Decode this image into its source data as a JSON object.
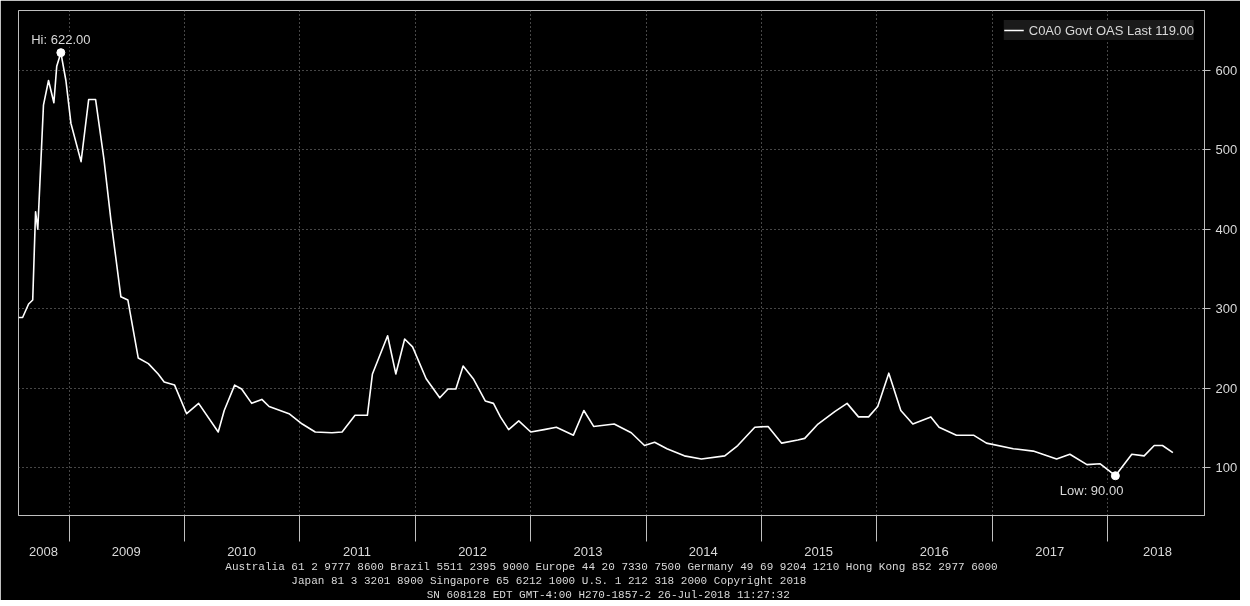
{
  "chart_data": {
    "type": "line",
    "x": [
      "2008-07-25",
      "2008-08-07",
      "2008-08-26",
      "2008-09-08",
      "2008-09-17",
      "2008-09-24",
      "2008-10-12",
      "2008-10-28",
      "2008-11-14",
      "2008-11-23",
      "2008-12-06",
      "2008-12-22",
      "2009-01-07",
      "2009-02-08",
      "2009-03-04",
      "2009-03-26",
      "2009-04-21",
      "2009-05-13",
      "2009-06-14",
      "2009-07-06",
      "2009-08-08",
      "2009-09-09",
      "2009-10-10",
      "2009-10-29",
      "2009-12-01",
      "2010-01-08",
      "2010-02-15",
      "2010-04-18",
      "2010-05-07",
      "2010-06-09",
      "2010-07-01",
      "2010-08-02",
      "2010-09-03",
      "2010-09-26",
      "2010-11-28",
      "2011-01-09",
      "2011-02-19",
      "2011-04-13",
      "2011-05-15",
      "2011-06-25",
      "2011-08-03",
      "2011-08-19",
      "2011-10-06",
      "2011-11-01",
      "2011-11-29",
      "2011-12-24",
      "2012-02-05",
      "2012-03-19",
      "2012-04-14",
      "2012-05-09",
      "2012-06-01",
      "2012-07-03",
      "2012-08-10",
      "2012-09-05",
      "2012-09-27",
      "2012-10-23",
      "2012-11-24",
      "2013-01-01",
      "2013-02-12",
      "2013-03-23",
      "2013-05-16",
      "2013-06-18",
      "2013-07-19",
      "2013-09-22",
      "2013-11-15",
      "2013-12-27",
      "2014-01-28",
      "2014-03-08",
      "2014-05-02",
      "2014-06-25",
      "2014-09-07",
      "2014-10-18",
      "2014-12-11",
      "2015-01-22",
      "2015-03-06",
      "2015-04-26",
      "2015-05-18",
      "2015-06-29",
      "2015-08-22",
      "2015-09-29",
      "2015-11-04",
      "2015-12-06",
      "2016-01-04",
      "2016-02-08",
      "2016-03-17",
      "2016-04-24",
      "2016-06-20",
      "2016-07-16",
      "2016-09-09",
      "2016-11-02",
      "2016-12-13",
      "2017-03-08",
      "2017-05-10",
      "2017-07-23",
      "2017-09-03",
      "2017-10-27",
      "2017-12-08",
      "2018-01-25",
      "2018-03-18",
      "2018-04-26",
      "2018-05-28",
      "2018-06-23",
      "2018-07-26"
    ],
    "series": [
      {
        "name": "C0A0 Govt OAS Last 119.00",
        "color": "#ffffff",
        "values": [
          289,
          289,
          306,
          311,
          422,
          400,
          556,
          587,
          559,
          605,
          622,
          587,
          533,
          485,
          563,
          563,
          489,
          413,
          315,
          311,
          238,
          231,
          218,
          208,
          204,
          168,
          181,
          145,
          172,
          204,
          199,
          181,
          186,
          177,
          168,
          155,
          145,
          144,
          145,
          166,
          166,
          218,
          266,
          218,
          262,
          252,
          212,
          188,
          199,
          199,
          228,
          212,
          184,
          181,
          164,
          148,
          159,
          145,
          148,
          151,
          141,
          172,
          152,
          155,
          144,
          128,
          132,
          124,
          115,
          111,
          115,
          128,
          151,
          152,
          131,
          135,
          137,
          155,
          171,
          181,
          164,
          164,
          177,
          219,
          172,
          155,
          164,
          151,
          141,
          141,
          131,
          124,
          121,
          111,
          117,
          104,
          105,
          90,
          117,
          115,
          128,
          128,
          119
        ]
      }
    ],
    "xlim": [
      "2008-07-25",
      "2018-11-03"
    ],
    "xticks": [
      {
        "value": "2008-10-12",
        "label": "2008"
      },
      {
        "value": "2009-07-01",
        "label": "2009"
      },
      {
        "value": "2010-07-01",
        "label": "2010"
      },
      {
        "value": "2011-07-01",
        "label": "2011"
      },
      {
        "value": "2012-07-01",
        "label": "2012"
      },
      {
        "value": "2013-07-01",
        "label": "2013"
      },
      {
        "value": "2014-07-01",
        "label": "2014"
      },
      {
        "value": "2015-07-01",
        "label": "2015"
      },
      {
        "value": "2016-07-01",
        "label": "2016"
      },
      {
        "value": "2017-07-01",
        "label": "2017"
      },
      {
        "value": "2018-06-07",
        "label": "2018"
      },
      {
        "value": "2009-01-01",
        "label": null
      },
      {
        "value": "2010-01-01",
        "label": null
      },
      {
        "value": "2011-01-01",
        "label": null
      },
      {
        "value": "2012-01-01",
        "label": null
      },
      {
        "value": "2013-01-01",
        "label": null
      },
      {
        "value": "2014-01-01",
        "label": null
      },
      {
        "value": "2015-01-01",
        "label": null
      },
      {
        "value": "2016-01-01",
        "label": null
      },
      {
        "value": "2017-01-01",
        "label": null
      },
      {
        "value": "2018-01-01",
        "label": null
      }
    ],
    "ylim": [
      40,
      675
    ],
    "yticks": [
      100,
      200,
      300,
      400,
      500,
      600
    ],
    "grid": true,
    "legend": "top right",
    "marker": "none",
    "line_style": "solid",
    "annotations": [
      {
        "text": "Hi: 622.00",
        "x": "2008-12-06",
        "y": 622
      },
      {
        "text": "Low: 90.00",
        "x": "2018-01-25",
        "y": 90
      },
      "Australia 61 2 9777 8600 Brazil 5511 2395 9000 Europe 44 20 7330 7500 Germany 49 69 9204 1210 Hong Kong 852 2977 6000",
      "Japan 81 3 3201 8900      Singapore 65 6212 1000      U.S. 1 212 318 2000          Copyright 2018",
      "SN 608128 EDT  GMT-4:00 H270-1857-2 26-Jul-2018 11:27:32"
    ]
  }
}
